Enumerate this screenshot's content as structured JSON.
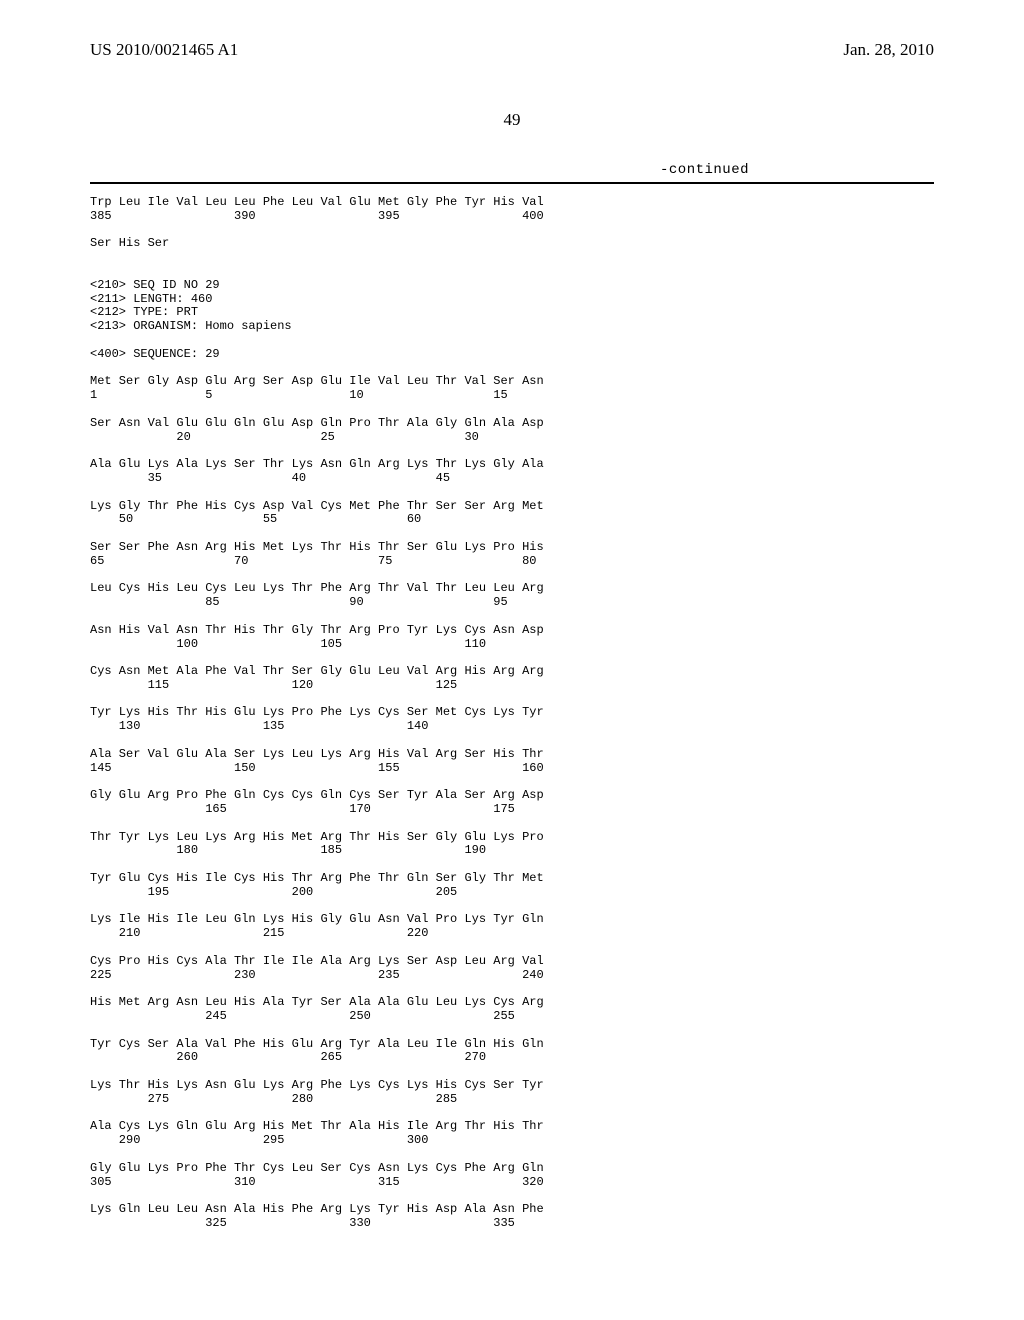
{
  "header": {
    "left": "US 2010/0021465 A1",
    "right": "Jan. 28, 2010"
  },
  "page_number": "49",
  "continued_label": "-continued",
  "sequence_text": "Trp Leu Ile Val Leu Leu Phe Leu Val Glu Met Gly Phe Tyr His Val\n385                 390                 395                 400\n\nSer His Ser\n\n\n<210> SEQ ID NO 29\n<211> LENGTH: 460\n<212> TYPE: PRT\n<213> ORGANISM: Homo sapiens\n\n<400> SEQUENCE: 29\n\nMet Ser Gly Asp Glu Arg Ser Asp Glu Ile Val Leu Thr Val Ser Asn\n1               5                   10                  15\n\nSer Asn Val Glu Glu Gln Glu Asp Gln Pro Thr Ala Gly Gln Ala Asp\n            20                  25                  30\n\nAla Glu Lys Ala Lys Ser Thr Lys Asn Gln Arg Lys Thr Lys Gly Ala\n        35                  40                  45\n\nLys Gly Thr Phe His Cys Asp Val Cys Met Phe Thr Ser Ser Arg Met\n    50                  55                  60\n\nSer Ser Phe Asn Arg His Met Lys Thr His Thr Ser Glu Lys Pro His\n65                  70                  75                  80\n\nLeu Cys His Leu Cys Leu Lys Thr Phe Arg Thr Val Thr Leu Leu Arg\n                85                  90                  95\n\nAsn His Val Asn Thr His Thr Gly Thr Arg Pro Tyr Lys Cys Asn Asp\n            100                 105                 110\n\nCys Asn Met Ala Phe Val Thr Ser Gly Glu Leu Val Arg His Arg Arg\n        115                 120                 125\n\nTyr Lys His Thr His Glu Lys Pro Phe Lys Cys Ser Met Cys Lys Tyr\n    130                 135                 140\n\nAla Ser Val Glu Ala Ser Lys Leu Lys Arg His Val Arg Ser His Thr\n145                 150                 155                 160\n\nGly Glu Arg Pro Phe Gln Cys Cys Gln Cys Ser Tyr Ala Ser Arg Asp\n                165                 170                 175\n\nThr Tyr Lys Leu Lys Arg His Met Arg Thr His Ser Gly Glu Lys Pro\n            180                 185                 190\n\nTyr Glu Cys His Ile Cys His Thr Arg Phe Thr Gln Ser Gly Thr Met\n        195                 200                 205\n\nLys Ile His Ile Leu Gln Lys His Gly Glu Asn Val Pro Lys Tyr Gln\n    210                 215                 220\n\nCys Pro His Cys Ala Thr Ile Ile Ala Arg Lys Ser Asp Leu Arg Val\n225                 230                 235                 240\n\nHis Met Arg Asn Leu His Ala Tyr Ser Ala Ala Glu Leu Lys Cys Arg\n                245                 250                 255\n\nTyr Cys Ser Ala Val Phe His Glu Arg Tyr Ala Leu Ile Gln His Gln\n            260                 265                 270\n\nLys Thr His Lys Asn Glu Lys Arg Phe Lys Cys Lys His Cys Ser Tyr\n        275                 280                 285\n\nAla Cys Lys Gln Glu Arg His Met Thr Ala His Ile Arg Thr His Thr\n    290                 295                 300\n\nGly Glu Lys Pro Phe Thr Cys Leu Ser Cys Asn Lys Cys Phe Arg Gln\n305                 310                 315                 320\n\nLys Gln Leu Leu Asn Ala His Phe Arg Lys Tyr His Asp Ala Asn Phe\n                325                 330                 335"
}
